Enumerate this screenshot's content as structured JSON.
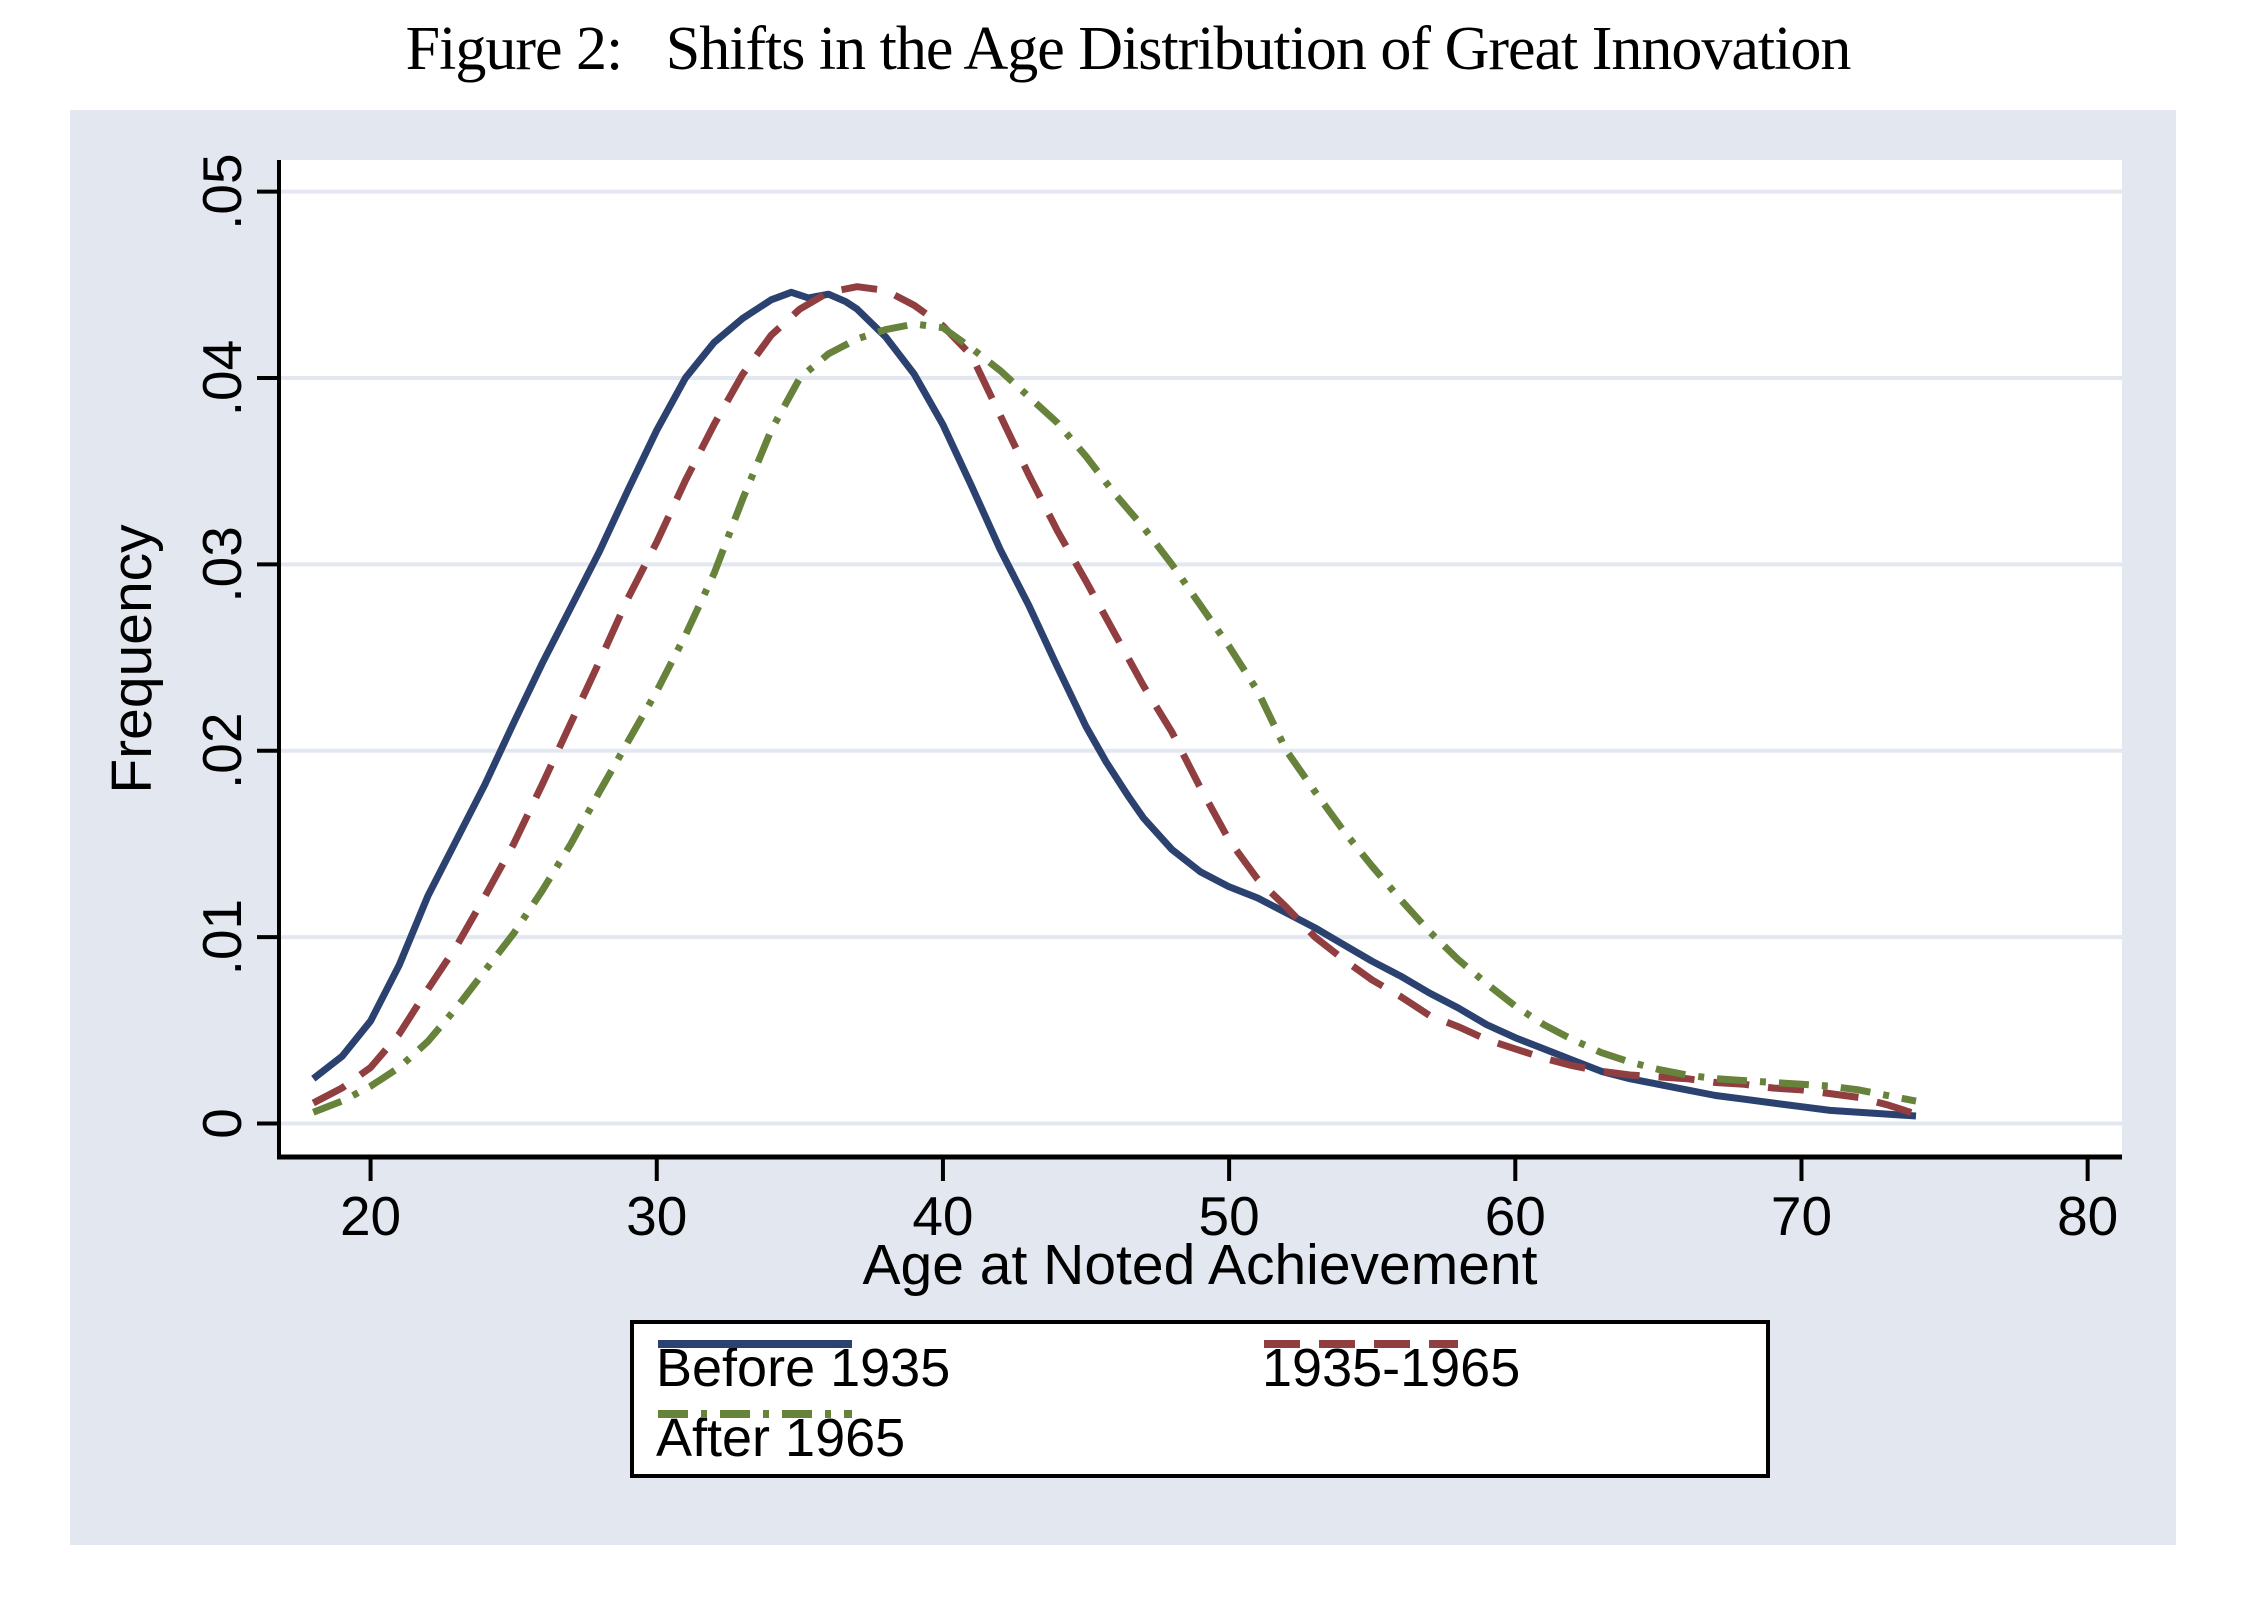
{
  "title": "Figure 2:   Shifts in the Age Distribution of Great Innovation",
  "colors": {
    "figure_background": "#e3e7f0",
    "plot_background": "#ffffff",
    "gridline": "#e3e7f0",
    "axis": "#000000",
    "text": "#000000"
  },
  "x_axis": {
    "label": "Age at Noted Achievement",
    "ticks": [
      {
        "value": 20,
        "label": "20"
      },
      {
        "value": 30,
        "label": "30"
      },
      {
        "value": 40,
        "label": "40"
      },
      {
        "value": 50,
        "label": "50"
      },
      {
        "value": 60,
        "label": "60"
      },
      {
        "value": 70,
        "label": "70"
      },
      {
        "value": 80,
        "label": "80"
      }
    ]
  },
  "y_axis": {
    "label": "Frequency",
    "ticks": [
      {
        "value": 0,
        "label": "0"
      },
      {
        "value": 0.01,
        "label": ".01"
      },
      {
        "value": 0.02,
        "label": ".02"
      },
      {
        "value": 0.03,
        "label": ".03"
      },
      {
        "value": 0.04,
        "label": ".04"
      },
      {
        "value": 0.05,
        "label": ".05"
      }
    ]
  },
  "chart_data": {
    "type": "line",
    "title": "Figure 2: Shifts in the Age Distribution of Great Innovation",
    "xlabel": "Age at Noted Achievement",
    "ylabel": "Frequency",
    "xlim": [
      16.8,
      81.2
    ],
    "ylim": [
      -0.0018,
      0.0517
    ],
    "grid": true,
    "legend_position": "bottom-center",
    "series": [
      {
        "name": "Before 1935",
        "color": "#2b4270",
        "dash": "none",
        "points": [
          [
            18,
            0.0024
          ],
          [
            19,
            0.0036
          ],
          [
            20,
            0.0055
          ],
          [
            21,
            0.0085
          ],
          [
            22,
            0.0122
          ],
          [
            23,
            0.0152
          ],
          [
            24,
            0.0182
          ],
          [
            25,
            0.0215
          ],
          [
            26,
            0.0247
          ],
          [
            27,
            0.0277
          ],
          [
            28,
            0.0307
          ],
          [
            29,
            0.034
          ],
          [
            30,
            0.0372
          ],
          [
            31,
            0.04
          ],
          [
            32,
            0.0419
          ],
          [
            33,
            0.0432
          ],
          [
            34,
            0.0442
          ],
          [
            34.7,
            0.0446
          ],
          [
            35.3,
            0.0443
          ],
          [
            36,
            0.0445
          ],
          [
            36.6,
            0.0441
          ],
          [
            37,
            0.0437
          ],
          [
            38,
            0.0422
          ],
          [
            39,
            0.0402
          ],
          [
            40,
            0.0375
          ],
          [
            41,
            0.0342
          ],
          [
            42,
            0.0308
          ],
          [
            43,
            0.0278
          ],
          [
            44,
            0.0245
          ],
          [
            45,
            0.0213
          ],
          [
            45.7,
            0.0194
          ],
          [
            46.5,
            0.0175
          ],
          [
            47,
            0.0164
          ],
          [
            48,
            0.0147
          ],
          [
            49,
            0.0135
          ],
          [
            50,
            0.0127
          ],
          [
            51,
            0.0121
          ],
          [
            52,
            0.0113
          ],
          [
            53,
            0.0105
          ],
          [
            54,
            0.0096
          ],
          [
            55,
            0.0087
          ],
          [
            56,
            0.0079
          ],
          [
            57,
            0.007
          ],
          [
            58,
            0.0062
          ],
          [
            59,
            0.0053
          ],
          [
            60,
            0.0046
          ],
          [
            61,
            0.004
          ],
          [
            62,
            0.0034
          ],
          [
            63,
            0.0028
          ],
          [
            64,
            0.0024
          ],
          [
            65,
            0.0021
          ],
          [
            66,
            0.0018
          ],
          [
            67,
            0.0015
          ],
          [
            68,
            0.0013
          ],
          [
            69,
            0.0011
          ],
          [
            70,
            0.0009
          ],
          [
            71,
            0.0007
          ],
          [
            72,
            0.0006
          ],
          [
            73,
            0.0005
          ],
          [
            74,
            0.0004
          ]
        ]
      },
      {
        "name": "1935-1965",
        "color": "#903e3f",
        "dash": "36 19",
        "points": [
          [
            18,
            0.0011
          ],
          [
            19,
            0.0019
          ],
          [
            20,
            0.003
          ],
          [
            21,
            0.0048
          ],
          [
            22,
            0.0072
          ],
          [
            23,
            0.0095
          ],
          [
            24,
            0.0122
          ],
          [
            25,
            0.015
          ],
          [
            26,
            0.0182
          ],
          [
            27,
            0.0215
          ],
          [
            28,
            0.0248
          ],
          [
            29,
            0.0282
          ],
          [
            30,
            0.0312
          ],
          [
            31,
            0.0345
          ],
          [
            32,
            0.0375
          ],
          [
            33,
            0.0402
          ],
          [
            34,
            0.0423
          ],
          [
            35,
            0.0437
          ],
          [
            36,
            0.0446
          ],
          [
            37,
            0.0449
          ],
          [
            38,
            0.0447
          ],
          [
            39,
            0.0439
          ],
          [
            40,
            0.0428
          ],
          [
            41,
            0.0412
          ],
          [
            42,
            0.038
          ],
          [
            43,
            0.0348
          ],
          [
            44,
            0.0318
          ],
          [
            45,
            0.0291
          ],
          [
            46,
            0.0263
          ],
          [
            47,
            0.0235
          ],
          [
            48,
            0.021
          ],
          [
            49,
            0.018
          ],
          [
            50,
            0.0152
          ],
          [
            51,
            0.0131
          ],
          [
            52,
            0.0116
          ],
          [
            53,
            0.01
          ],
          [
            54,
            0.0088
          ],
          [
            55,
            0.0077
          ],
          [
            56,
            0.0068
          ],
          [
            57,
            0.0058
          ],
          [
            58,
            0.0052
          ],
          [
            59,
            0.0045
          ],
          [
            60,
            0.004
          ],
          [
            61,
            0.0035
          ],
          [
            62,
            0.0031
          ],
          [
            63,
            0.0028
          ],
          [
            64,
            0.0026
          ],
          [
            65,
            0.0025
          ],
          [
            66,
            0.0024
          ],
          [
            67,
            0.0022
          ],
          [
            68,
            0.0021
          ],
          [
            69,
            0.0019
          ],
          [
            70,
            0.0018
          ],
          [
            71,
            0.0016
          ],
          [
            72,
            0.0014
          ],
          [
            73,
            0.001
          ],
          [
            74,
            0.0005
          ]
        ]
      },
      {
        "name": "After 1965",
        "color": "#67823a",
        "dash": "30 13 6 13",
        "points": [
          [
            18,
            0.0006
          ],
          [
            19,
            0.0012
          ],
          [
            20,
            0.002
          ],
          [
            21,
            0.003
          ],
          [
            22,
            0.0044
          ],
          [
            23,
            0.0062
          ],
          [
            24,
            0.0082
          ],
          [
            25,
            0.0102
          ],
          [
            26,
            0.0125
          ],
          [
            27,
            0.015
          ],
          [
            28,
            0.0178
          ],
          [
            29,
            0.0205
          ],
          [
            30,
            0.0232
          ],
          [
            31,
            0.0262
          ],
          [
            32,
            0.0295
          ],
          [
            33,
            0.0335
          ],
          [
            34,
            0.0372
          ],
          [
            35,
            0.04
          ],
          [
            36,
            0.0413
          ],
          [
            37,
            0.0421
          ],
          [
            38,
            0.0426
          ],
          [
            39,
            0.0429
          ],
          [
            40,
            0.0427
          ],
          [
            41,
            0.0416
          ],
          [
            42,
            0.0404
          ],
          [
            43,
            0.039
          ],
          [
            44,
            0.0376
          ],
          [
            45,
            0.0358
          ],
          [
            46,
            0.0338
          ],
          [
            47,
            0.032
          ],
          [
            48,
            0.03
          ],
          [
            49,
            0.0278
          ],
          [
            50,
            0.0256
          ],
          [
            51,
            0.0232
          ],
          [
            52,
            0.02
          ],
          [
            53,
            0.0178
          ],
          [
            54,
            0.0157
          ],
          [
            55,
            0.0138
          ],
          [
            56,
            0.012
          ],
          [
            57,
            0.0103
          ],
          [
            58,
            0.0088
          ],
          [
            59,
            0.0075
          ],
          [
            60,
            0.0063
          ],
          [
            61,
            0.0053
          ],
          [
            62,
            0.0045
          ],
          [
            63,
            0.0038
          ],
          [
            64,
            0.0033
          ],
          [
            65,
            0.0029
          ],
          [
            66,
            0.0026
          ],
          [
            67,
            0.0024
          ],
          [
            68,
            0.0023
          ],
          [
            69,
            0.0022
          ],
          [
            70,
            0.0021
          ],
          [
            71,
            0.002
          ],
          [
            72,
            0.0018
          ],
          [
            73,
            0.0015
          ],
          [
            74,
            0.0012
          ]
        ]
      }
    ]
  }
}
